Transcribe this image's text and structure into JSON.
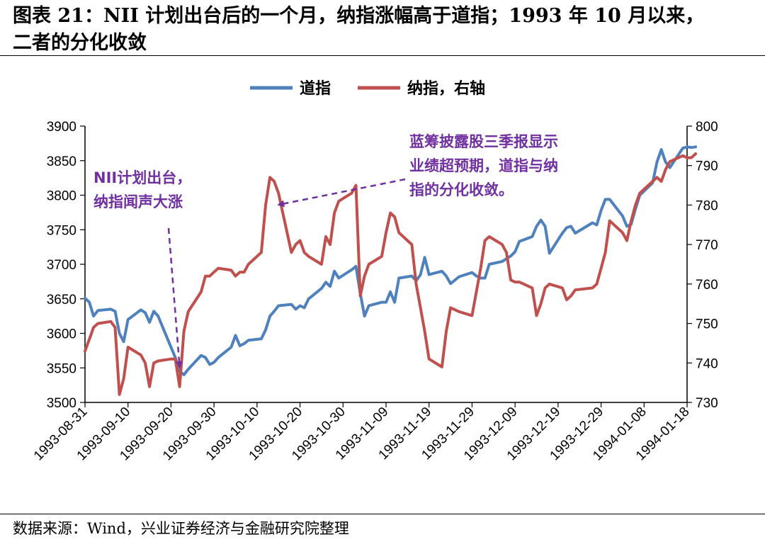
{
  "title_line1": "图表 21：NII 计划出台后的一个月，纳指涨幅高于道指；1993 年 10 月以来，",
  "title_line2": "二者的分化收敛",
  "source": "数据来源：Wind，兴业证券经济与金融研究院整理",
  "colors": {
    "dow": "#4F81BD",
    "nasdaq": "#C0504D",
    "annotation": "#7030A0"
  },
  "chart_data": {
    "type": "line",
    "legend_position": "top",
    "grid": false,
    "y_left_ticks": [
      "3900",
      "3850",
      "3800",
      "3750",
      "3700",
      "3650",
      "3600",
      "3550",
      "3500"
    ],
    "y_right_ticks": [
      "800",
      "790",
      "780",
      "770",
      "760",
      "750",
      "740",
      "730"
    ],
    "x_tick_labels": [
      "1993-08-31",
      "1993-09-10",
      "1993-09-20",
      "1993-09-30",
      "1993-10-10",
      "1993-10-20",
      "1993-10-30",
      "1993-11-09",
      "1993-11-19",
      "1993-11-29",
      "1993-12-09",
      "1993-12-19",
      "1993-12-29",
      "1994-01-08",
      "1994-01-18"
    ],
    "ylim_left": [
      3500,
      3900
    ],
    "ylim_right": [
      730,
      800
    ],
    "series": [
      {
        "name": "道指",
        "axis": "left",
        "points": [
          [
            "1993-08-31",
            3651
          ],
          [
            "1993-09-01",
            3645
          ],
          [
            "1993-09-02",
            3625
          ],
          [
            "1993-09-03",
            3633
          ],
          [
            "1993-09-06",
            3635
          ],
          [
            "1993-09-07",
            3632
          ],
          [
            "1993-09-08",
            3600
          ],
          [
            "1993-09-09",
            3588
          ],
          [
            "1993-09-10",
            3620
          ],
          [
            "1993-09-13",
            3634
          ],
          [
            "1993-09-14",
            3630
          ],
          [
            "1993-09-15",
            3616
          ],
          [
            "1993-09-16",
            3632
          ],
          [
            "1993-09-17",
            3625
          ],
          [
            "1993-09-20",
            3580
          ],
          [
            "1993-09-21",
            3565
          ],
          [
            "1993-09-22",
            3545
          ],
          [
            "1993-09-23",
            3540
          ],
          [
            "1993-09-24",
            3548
          ],
          [
            "1993-09-27",
            3568
          ],
          [
            "1993-09-28",
            3565
          ],
          [
            "1993-09-29",
            3555
          ],
          [
            "1993-09-30",
            3558
          ],
          [
            "1993-10-01",
            3565
          ],
          [
            "1993-10-04",
            3580
          ],
          [
            "1993-10-05",
            3597
          ],
          [
            "1993-10-06",
            3582
          ],
          [
            "1993-10-07",
            3585
          ],
          [
            "1993-10-08",
            3590
          ],
          [
            "1993-10-11",
            3592
          ],
          [
            "1993-10-12",
            3605
          ],
          [
            "1993-10-13",
            3625
          ],
          [
            "1993-10-14",
            3632
          ],
          [
            "1993-10-15",
            3640
          ],
          [
            "1993-10-18",
            3642
          ],
          [
            "1993-10-19",
            3635
          ],
          [
            "1993-10-20",
            3640
          ],
          [
            "1993-10-21",
            3637
          ],
          [
            "1993-10-22",
            3650
          ],
          [
            "1993-10-25",
            3665
          ],
          [
            "1993-10-26",
            3674
          ],
          [
            "1993-10-27",
            3668
          ],
          [
            "1993-10-28",
            3690
          ],
          [
            "1993-10-29",
            3680
          ],
          [
            "1993-11-01",
            3692
          ],
          [
            "1993-11-02",
            3697
          ],
          [
            "1993-11-03",
            3658
          ],
          [
            "1993-11-04",
            3625
          ],
          [
            "1993-11-05",
            3640
          ],
          [
            "1993-11-08",
            3645
          ],
          [
            "1993-11-09",
            3645
          ],
          [
            "1993-11-10",
            3660
          ],
          [
            "1993-11-11",
            3645
          ],
          [
            "1993-11-12",
            3680
          ],
          [
            "1993-11-15",
            3683
          ],
          [
            "1993-11-16",
            3676
          ],
          [
            "1993-11-17",
            3685
          ],
          [
            "1993-11-18",
            3710
          ],
          [
            "1993-11-19",
            3685
          ],
          [
            "1993-11-22",
            3690
          ],
          [
            "1993-11-23",
            3683
          ],
          [
            "1993-11-24",
            3672
          ],
          [
            "1993-11-26",
            3682
          ],
          [
            "1993-11-29",
            3688
          ],
          [
            "1993-11-30",
            3683
          ],
          [
            "1993-12-01",
            3680
          ],
          [
            "1993-12-02",
            3680
          ],
          [
            "1993-12-03",
            3700
          ],
          [
            "1993-12-06",
            3704
          ],
          [
            "1993-12-07",
            3708
          ],
          [
            "1993-12-08",
            3712
          ],
          [
            "1993-12-09",
            3718
          ],
          [
            "1993-12-10",
            3733
          ],
          [
            "1993-12-13",
            3740
          ],
          [
            "1993-12-14",
            3755
          ],
          [
            "1993-12-15",
            3764
          ],
          [
            "1993-12-16",
            3755
          ],
          [
            "1993-12-17",
            3716
          ],
          [
            "1993-12-20",
            3745
          ],
          [
            "1993-12-21",
            3753
          ],
          [
            "1993-12-22",
            3755
          ],
          [
            "1993-12-23",
            3745
          ],
          [
            "1993-12-27",
            3760
          ],
          [
            "1993-12-28",
            3757
          ],
          [
            "1993-12-29",
            3778
          ],
          [
            "1993-12-30",
            3794
          ],
          [
            "1993-12-31",
            3794
          ],
          [
            "1994-01-03",
            3770
          ],
          [
            "1994-01-04",
            3755
          ],
          [
            "1994-01-05",
            3758
          ],
          [
            "1994-01-06",
            3780
          ],
          [
            "1994-01-07",
            3800
          ],
          [
            "1994-01-10",
            3818
          ],
          [
            "1994-01-11",
            3848
          ],
          [
            "1994-01-12",
            3866
          ],
          [
            "1994-01-13",
            3848
          ],
          [
            "1994-01-14",
            3840
          ],
          [
            "1994-01-17",
            3868
          ],
          [
            "1994-01-18",
            3870
          ],
          [
            "1994-01-19",
            3869
          ],
          [
            "1994-01-20",
            3870
          ]
        ]
      },
      {
        "name": "纳指，右轴",
        "axis": "right",
        "points": [
          [
            "1993-08-31",
            743
          ],
          [
            "1993-09-01",
            746
          ],
          [
            "1993-09-02",
            749
          ],
          [
            "1993-09-03",
            750
          ],
          [
            "1993-09-06",
            750.5
          ],
          [
            "1993-09-07",
            749
          ],
          [
            "1993-09-08",
            732
          ],
          [
            "1993-09-09",
            736
          ],
          [
            "1993-09-10",
            744
          ],
          [
            "1993-09-13",
            742
          ],
          [
            "1993-09-14",
            740
          ],
          [
            "1993-09-15",
            734
          ],
          [
            "1993-09-16",
            740
          ],
          [
            "1993-09-17",
            740.5
          ],
          [
            "1993-09-20",
            741
          ],
          [
            "1993-09-21",
            741
          ],
          [
            "1993-09-22",
            734
          ],
          [
            "1993-09-23",
            748
          ],
          [
            "1993-09-24",
            753
          ],
          [
            "1993-09-27",
            758
          ],
          [
            "1993-09-28",
            762
          ],
          [
            "1993-09-29",
            762
          ],
          [
            "1993-09-30",
            763
          ],
          [
            "1993-10-01",
            764
          ],
          [
            "1993-10-04",
            763.5
          ],
          [
            "1993-10-05",
            762
          ],
          [
            "1993-10-06",
            763
          ],
          [
            "1993-10-07",
            763
          ],
          [
            "1993-10-08",
            765
          ],
          [
            "1993-10-11",
            768
          ],
          [
            "1993-10-12",
            780
          ],
          [
            "1993-10-13",
            787
          ],
          [
            "1993-10-14",
            786
          ],
          [
            "1993-10-15",
            783
          ],
          [
            "1993-10-18",
            768
          ],
          [
            "1993-10-19",
            770
          ],
          [
            "1993-10-20",
            771
          ],
          [
            "1993-10-21",
            768
          ],
          [
            "1993-10-22",
            767
          ],
          [
            "1993-10-25",
            765
          ],
          [
            "1993-10-26",
            772
          ],
          [
            "1993-10-27",
            770
          ],
          [
            "1993-10-28",
            778
          ],
          [
            "1993-10-29",
            781
          ],
          [
            "1993-11-01",
            783
          ],
          [
            "1993-11-02",
            785
          ],
          [
            "1993-11-03",
            757
          ],
          [
            "1993-11-04",
            762
          ],
          [
            "1993-11-05",
            765
          ],
          [
            "1993-11-08",
            767
          ],
          [
            "1993-11-09",
            773
          ],
          [
            "1993-11-10",
            778
          ],
          [
            "1993-11-11",
            777
          ],
          [
            "1993-11-12",
            773
          ],
          [
            "1993-11-15",
            770
          ],
          [
            "1993-11-16",
            760
          ],
          [
            "1993-11-17",
            754
          ],
          [
            "1993-11-18",
            748
          ],
          [
            "1993-11-19",
            741
          ],
          [
            "1993-11-22",
            739
          ],
          [
            "1993-11-23",
            748
          ],
          [
            "1993-11-24",
            754
          ],
          [
            "1993-11-26",
            753
          ],
          [
            "1993-11-29",
            752
          ],
          [
            "1993-11-30",
            758
          ],
          [
            "1993-12-01",
            764
          ],
          [
            "1993-12-02",
            771
          ],
          [
            "1993-12-03",
            772
          ],
          [
            "1993-12-06",
            770
          ],
          [
            "1993-12-07",
            768
          ],
          [
            "1993-12-08",
            761
          ],
          [
            "1993-12-09",
            760.5
          ],
          [
            "1993-12-10",
            760.5
          ],
          [
            "1993-12-13",
            759
          ],
          [
            "1993-12-14",
            752
          ],
          [
            "1993-12-15",
            755
          ],
          [
            "1993-12-16",
            759
          ],
          [
            "1993-12-17",
            760
          ],
          [
            "1993-12-20",
            759
          ],
          [
            "1993-12-21",
            756
          ],
          [
            "1993-12-22",
            757
          ],
          [
            "1993-12-23",
            758.5
          ],
          [
            "1993-12-27",
            759
          ],
          [
            "1993-12-28",
            760
          ],
          [
            "1993-12-29",
            764
          ],
          [
            "1993-12-30",
            768
          ],
          [
            "1993-12-31",
            776
          ],
          [
            "1994-01-03",
            773
          ],
          [
            "1994-01-04",
            771
          ],
          [
            "1994-01-05",
            776
          ],
          [
            "1994-01-06",
            780
          ],
          [
            "1994-01-07",
            783
          ],
          [
            "1994-01-10",
            786
          ],
          [
            "1994-01-11",
            787
          ],
          [
            "1994-01-12",
            786
          ],
          [
            "1994-01-13",
            789
          ],
          [
            "1994-01-14",
            791
          ],
          [
            "1994-01-17",
            792.5
          ],
          [
            "1994-01-18",
            792
          ],
          [
            "1994-01-19",
            792
          ],
          [
            "1994-01-20",
            793
          ]
        ]
      }
    ],
    "annotations": [
      {
        "lines": [
          "NII计划出台，",
          "纳指闻声大涨"
        ],
        "arrow_to": [
          "1993-09-22",
          3545
        ],
        "axis": "left"
      },
      {
        "lines": [
          "蓝筹披露股三季报显示",
          "业绩超预期，道指与纳",
          "指的分化收敛。"
        ],
        "arrow_to": [
          "1993-10-15",
          3780
        ],
        "axis": "left"
      }
    ]
  }
}
